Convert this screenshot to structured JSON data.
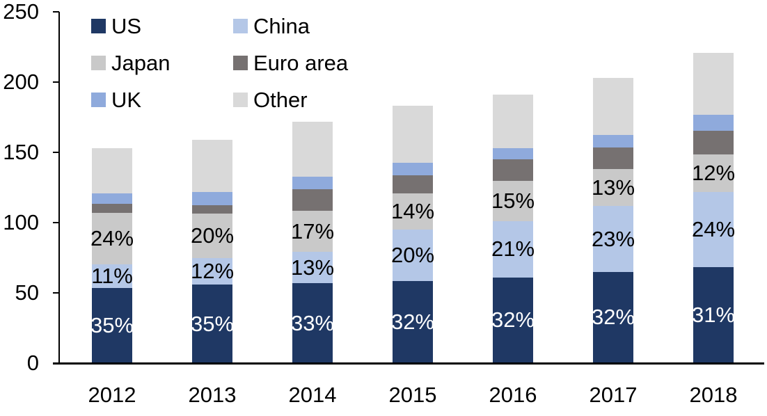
{
  "chart_data": {
    "type": "bar",
    "stacked": true,
    "title": "",
    "categories": [
      "2012",
      "2013",
      "2014",
      "2015",
      "2016",
      "2017",
      "2018"
    ],
    "series": [
      {
        "name": "US",
        "color": "#1F3864",
        "values": [
          53.6,
          55.7,
          56.8,
          58.6,
          61.1,
          65.0,
          68.5
        ],
        "labels": [
          "35%",
          "35%",
          "33%",
          "32%",
          "32%",
          "32%",
          "31%"
        ],
        "label_color": "#FFFFFF"
      },
      {
        "name": "China",
        "color": "#B4C7E7",
        "values": [
          16.8,
          19.1,
          22.4,
          36.6,
          40.1,
          46.7,
          53.5
        ],
        "labels": [
          "11%",
          "12%",
          "13%",
          "20%",
          "21%",
          "23%",
          "24%"
        ],
        "label_color": "#000000"
      },
      {
        "name": "Japan",
        "color": "#C9C9C9",
        "values": [
          36.7,
          31.8,
          29.2,
          25.6,
          28.7,
          26.4,
          26.5
        ],
        "labels": [
          "24%",
          "20%",
          "17%",
          "14%",
          "15%",
          "13%",
          "12%"
        ],
        "label_color": "#000000"
      },
      {
        "name": "Euro area",
        "color": "#767171",
        "values": [
          6.1,
          5.6,
          15.5,
          12.8,
          15.3,
          15.2,
          17.0
        ]
      },
      {
        "name": "UK",
        "color": "#8FAADC",
        "values": [
          7.7,
          9.5,
          8.6,
          9.2,
          7.6,
          9.1,
          11.0
        ]
      },
      {
        "name": "Other",
        "color": "#D9D9D9",
        "values": [
          32.1,
          37.3,
          39.5,
          40.2,
          38.2,
          40.6,
          44.5
        ]
      }
    ],
    "totals": [
      153,
      159,
      172,
      183,
      191,
      203,
      221
    ],
    "xlabel": "",
    "ylabel": "",
    "ylim": [
      0,
      250
    ],
    "yticks": [
      0,
      50,
      100,
      150,
      200,
      250
    ],
    "grid": false,
    "legend_position": "top-left",
    "legend_columns": 2,
    "axis_color": "#000000",
    "background_color": "#FFFFFF"
  }
}
